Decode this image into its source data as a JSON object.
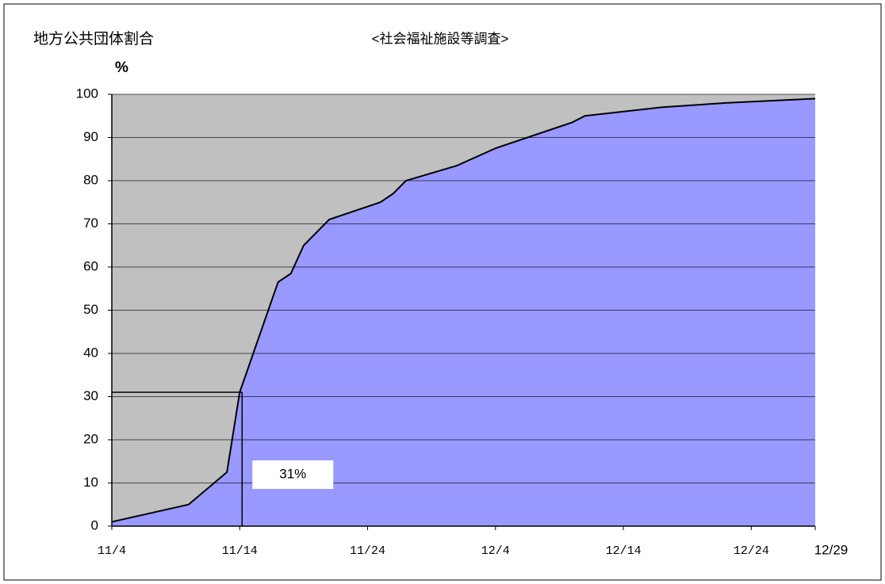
{
  "chart_data": {
    "type": "area",
    "title": "地方公共団体割合",
    "subtitle": "<社会福祉施設等調査>",
    "y_unit": "%",
    "x": [
      "11/4",
      "11/10",
      "11/12",
      "11/13",
      "11/14",
      "11/17",
      "11/18",
      "11/19",
      "11/21",
      "11/25",
      "11/26",
      "11/27",
      "12/1",
      "12/4",
      "12/9",
      "12/10",
      "12/11",
      "12/17",
      "12/22",
      "12/29"
    ],
    "values": [
      1,
      5,
      10,
      12.5,
      31,
      56.5,
      58.5,
      65,
      71,
      75,
      77,
      80,
      83.5,
      87.5,
      92.5,
      93.5,
      95,
      97,
      98,
      99
    ],
    "color": "#9999ff",
    "line_color": "#000000",
    "background": "#c0c0c0",
    "xlim": [
      "11/4",
      "12/29"
    ],
    "xticks": [
      "11/4",
      "11/14",
      "11/24",
      "12/4",
      "12/14",
      "12/24",
      "12/29"
    ],
    "ylim": [
      0,
      100
    ],
    "yticks": [
      0,
      10,
      20,
      30,
      40,
      50,
      60,
      70,
      80,
      90,
      100
    ],
    "grid": true,
    "annotation": {
      "x": "11/14",
      "value": 31,
      "label": "31%"
    }
  }
}
